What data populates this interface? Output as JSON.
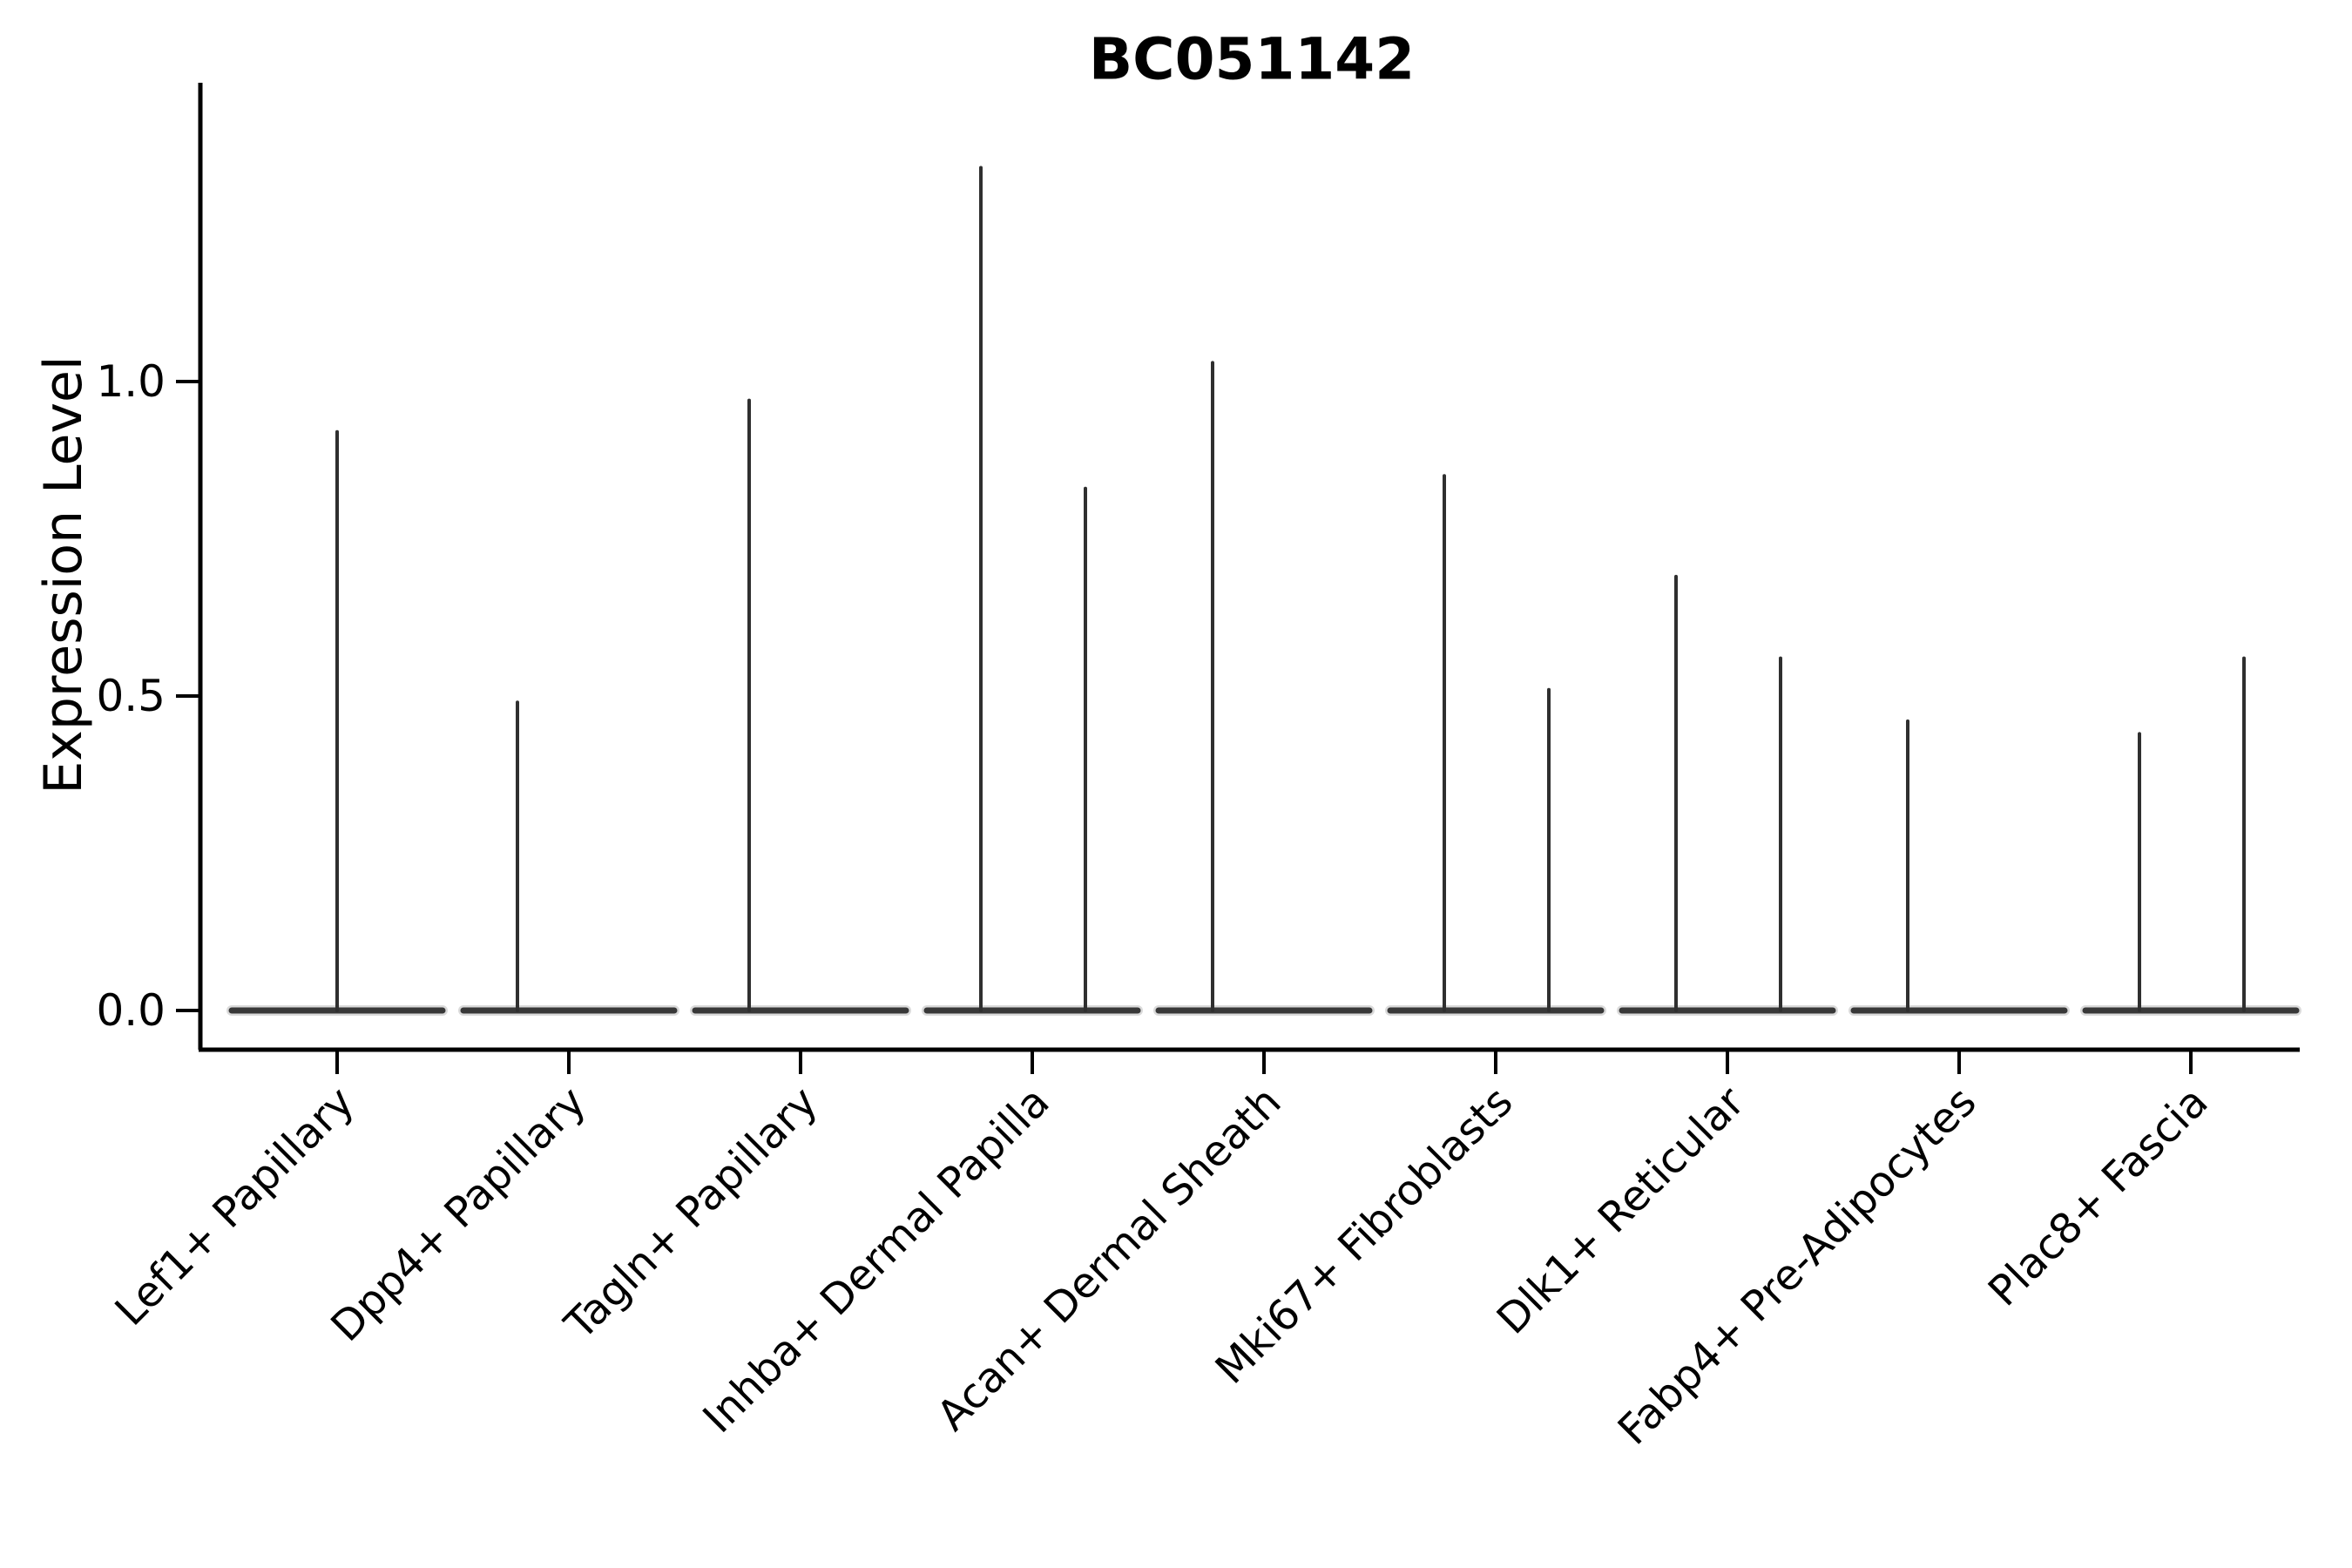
{
  "chart_data": {
    "type": "violin",
    "title": "BC051142",
    "ylabel": "Expression Level",
    "xlabel": "",
    "grid": false,
    "legend_position": "none",
    "ylim": [
      -0.065,
      1.475
    ],
    "ytick_labels": [
      "0.0",
      "0.5",
      "1.0"
    ],
    "ytick_values": [
      0.0,
      0.5,
      1.0
    ],
    "categories": [
      "Lef1+ Papillary",
      "Dpp4+ Papillary",
      "Tagln+ Papillary",
      "Inhba+ Dermal Papilla",
      "Acan+ Dermal Sheath",
      "Mki67+ Fibroblasts",
      "Dlk1+ Reticular",
      "Fabp4+ Pre-Adipocytes",
      "Plac8+ Fascia"
    ],
    "violins": [
      {
        "category": "Lef1+ Papillary",
        "spikes": [
          {
            "position": "center",
            "value": 0.92
          }
        ]
      },
      {
        "category": "Dpp4+ Papillary",
        "spikes": [
          {
            "position": "left",
            "value": 0.49
          }
        ]
      },
      {
        "category": "Tagln+ Papillary",
        "spikes": [
          {
            "position": "left",
            "value": 0.97
          }
        ]
      },
      {
        "category": "Inhba+ Dermal Papilla",
        "spikes": [
          {
            "position": "left",
            "value": 1.34
          },
          {
            "position": "right",
            "value": 0.83
          }
        ]
      },
      {
        "category": "Acan+ Dermal Sheath",
        "spikes": [
          {
            "position": "left",
            "value": 1.03
          }
        ]
      },
      {
        "category": "Mki67+ Fibroblasts",
        "spikes": [
          {
            "position": "left",
            "value": 0.85
          },
          {
            "position": "right",
            "value": 0.51
          }
        ]
      },
      {
        "category": "Dlk1+ Reticular",
        "spikes": [
          {
            "position": "left",
            "value": 0.69
          },
          {
            "position": "right",
            "value": 0.56
          }
        ]
      },
      {
        "category": "Fabp4+ Pre-Adipocytes",
        "spikes": [
          {
            "position": "left",
            "value": 0.46
          }
        ]
      },
      {
        "category": "Plac8+ Fascia",
        "spikes": [
          {
            "position": "left",
            "value": 0.44
          },
          {
            "position": "right",
            "value": 0.56
          }
        ]
      }
    ],
    "colors": {
      "violin_line": "#2f2f2f",
      "violin_base": "#383838",
      "axis": "#000000",
      "text": "#000000",
      "background": "#ffffff"
    }
  }
}
